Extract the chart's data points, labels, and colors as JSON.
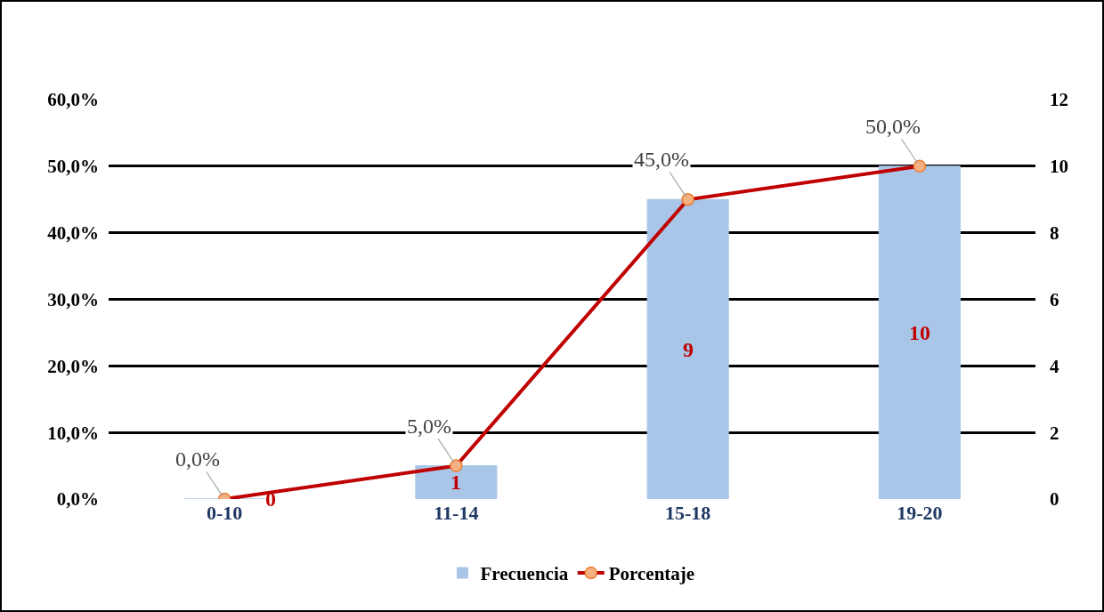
{
  "chart_data": {
    "type": "bar",
    "categories": [
      "0-10",
      "11-14",
      "15-18",
      "19-20"
    ],
    "series": [
      {
        "name": "Frecuencia",
        "axis": "y2",
        "color": "#a9c6e8",
        "values": [
          0,
          1,
          9,
          10
        ],
        "data_labels": true
      },
      {
        "name": "Porcentaje",
        "type": "line",
        "axis": "y",
        "color": "#c00000",
        "values": [
          0,
          5,
          45,
          50
        ],
        "value_labels": [
          "0,0%",
          "5,0%",
          "45,0%",
          "50,0%"
        ],
        "marker": "circle"
      }
    ],
    "ylim": [
      0,
      60
    ],
    "yticks": [
      {
        "value": 0,
        "label": "0,0%"
      },
      {
        "value": 10,
        "label": "10,0%"
      },
      {
        "value": 20,
        "label": "20,0%"
      },
      {
        "value": 30,
        "label": "30,0%"
      },
      {
        "value": 40,
        "label": "40,0%"
      },
      {
        "value": 50,
        "label": "50,0%"
      },
      {
        "value": 60,
        "label": "60,0%"
      }
    ],
    "y2lim": [
      0,
      12
    ],
    "y2ticks": [
      0,
      2,
      4,
      6,
      8,
      10,
      12
    ],
    "grid": "y",
    "legend": "bottom"
  }
}
